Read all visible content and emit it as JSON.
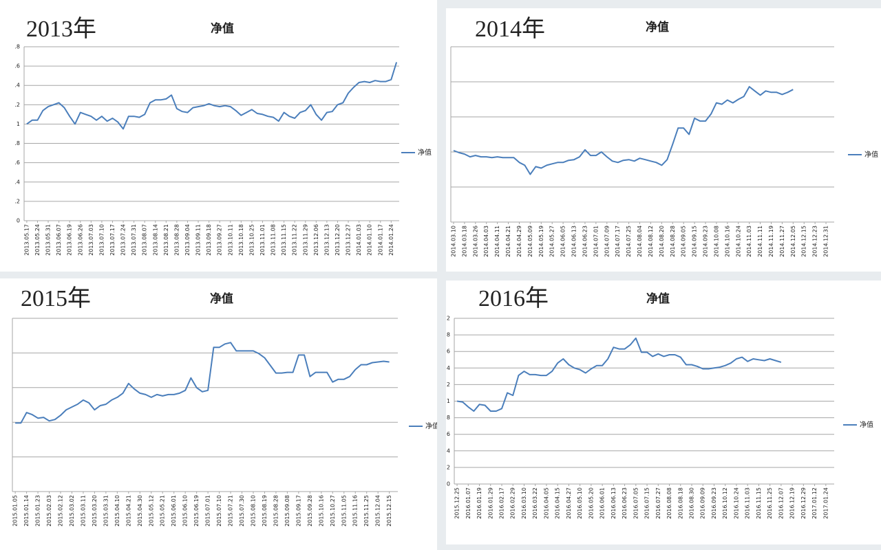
{
  "chart_data": [
    {
      "type": "line",
      "year_label": "2013年",
      "title": "净值",
      "categories": [
        "2013.05.17",
        null,
        "2013.05.24",
        null,
        "2013.05.31",
        null,
        "2013.06.07",
        null,
        "2013.06.19",
        null,
        "2013.06.26",
        null,
        "2013.07.03",
        null,
        "2013.07.10",
        null,
        "2013.07.17",
        null,
        "2013.07.24",
        null,
        "2013.07.31",
        null,
        "2013.08.07",
        null,
        "2013.08.14",
        null,
        "2013.08.21",
        null,
        "2013.08.28",
        null,
        "2013.09.04",
        null,
        "2013.09.11",
        null,
        "2013.09.18",
        null,
        "2013.09.27",
        null,
        "2013.10.11",
        null,
        "2013.10.18",
        null,
        "2013.10.25",
        null,
        "2013.11.01",
        null,
        "2013.11.08",
        null,
        "2013.11.15",
        null,
        "2013.11.22",
        null,
        "2013.11.29",
        null,
        "2013.12.06",
        null,
        "2013.12.13",
        null,
        "2013.12.20",
        null,
        "2013.12.27",
        null,
        "2014.01.03",
        null,
        "2014.01.10",
        null,
        "2014.01.17",
        null,
        "2014.01.24",
        null
      ],
      "series": [
        {
          "name": "净值",
          "color": "#4a7ebb",
          "values": [
            1.0,
            1.04,
            1.04,
            1.14,
            1.18,
            1.2,
            1.22,
            1.17,
            1.08,
            1.0,
            1.12,
            1.1,
            1.08,
            1.04,
            1.08,
            1.03,
            1.06,
            1.02,
            0.95,
            1.08,
            1.08,
            1.07,
            1.1,
            1.22,
            1.25,
            1.25,
            1.26,
            1.3,
            1.16,
            1.13,
            1.12,
            1.17,
            1.18,
            1.19,
            1.21,
            1.19,
            1.18,
            1.19,
            1.18,
            1.14,
            1.09,
            1.12,
            1.15,
            1.11,
            1.1,
            1.08,
            1.07,
            1.03,
            1.12,
            1.08,
            1.06,
            1.12,
            1.14,
            1.2,
            1.1,
            1.04,
            1.12,
            1.13,
            1.2,
            1.22,
            1.32,
            1.38,
            1.43,
            1.44,
            1.43,
            1.45,
            1.44,
            1.44,
            1.46,
            1.64
          ]
        }
      ],
      "ylim": [
        0,
        1.8
      ],
      "yticks": [
        0,
        {
          "value": 0.2,
          "label": ".2"
        },
        {
          "value": 0.4,
          "label": ".4"
        },
        {
          "value": 0.6,
          "label": ".6"
        },
        {
          "value": 0.8,
          "label": ".8"
        },
        1,
        {
          "value": 1.2,
          "label": ".2"
        },
        {
          "value": 1.4,
          "label": ".4"
        },
        {
          "value": 1.6,
          "label": ".6"
        },
        {
          "value": 1.8,
          "label": ".8"
        }
      ],
      "grid": true
    },
    {
      "type": "line",
      "year_label": "2014年",
      "title": "净值",
      "categories": [
        "2014.03.10",
        null,
        "2014.03.18",
        null,
        "2014.03.26",
        null,
        "2014.04.03",
        null,
        "2014.04.11",
        null,
        "2014.04.21",
        null,
        "2014.04.29",
        null,
        "2014.05.09",
        null,
        "2014.05.19",
        null,
        "2014.05.27",
        null,
        "2014.06.05",
        null,
        "2014.06.13",
        null,
        "2014.06.23",
        null,
        "2014.07.01",
        null,
        "2014.07.09",
        null,
        "2014.07.17",
        null,
        "2014.07.25",
        null,
        "2014.08.04",
        null,
        "2014.08.12",
        null,
        "2014.08.20",
        null,
        "2014.08.28",
        null,
        "2014.09.05",
        null,
        "2014.09.15",
        null,
        "2014.09.23",
        null,
        "2014.10.08",
        null,
        "2014.10.16",
        null,
        "2014.10.24",
        null,
        "2014.11.03",
        null,
        "2014.11.11",
        null,
        "2014.11.19",
        null,
        "2014.11.27",
        null,
        "2014.12.05",
        null,
        "2014.12.15",
        null,
        "2014.12.23",
        null,
        "2014.12.31",
        null
      ],
      "series": [
        {
          "name": "净值",
          "color": "#4a7ebb",
          "values": [
            1.02,
            0.99,
            0.97,
            0.93,
            0.95,
            0.93,
            0.93,
            0.92,
            0.93,
            0.92,
            0.92,
            0.92,
            0.85,
            0.81,
            0.68,
            0.79,
            0.77,
            0.81,
            0.83,
            0.85,
            0.85,
            0.88,
            0.89,
            0.93,
            1.03,
            0.95,
            0.95,
            1.0,
            0.93,
            0.87,
            0.85,
            0.88,
            0.89,
            0.87,
            0.91,
            0.89,
            0.87,
            0.85,
            0.81,
            0.89,
            1.11,
            1.34,
            1.34,
            1.25,
            1.48,
            1.44,
            1.44,
            1.54,
            1.7,
            1.68,
            1.74,
            1.7,
            1.75,
            1.79,
            1.93,
            1.87,
            1.81,
            1.87,
            1.85,
            1.85,
            1.82,
            1.85,
            1.89,
            null,
            null,
            null,
            null,
            null,
            null,
            null
          ]
        }
      ],
      "ylim": [
        0,
        2.5
      ],
      "ygrid": [
        0,
        0.5,
        1,
        1.5,
        2,
        2.5
      ],
      "grid": true
    },
    {
      "type": "line",
      "year_label": "2015年",
      "title": "净值",
      "categories": [
        "2015.01.05",
        null,
        "2015.01.14",
        null,
        "2015.01.23",
        null,
        "2015.02.03",
        null,
        "2015.02.12",
        null,
        "2015.03.02",
        null,
        "2015.03.11",
        null,
        "2015.03.20",
        null,
        "2015.03.31",
        null,
        "2015.04.10",
        null,
        "2015.04.21",
        null,
        "2015.04.30",
        null,
        "2015.05.12",
        null,
        "2015.05.21",
        null,
        "2015.06.01",
        null,
        "2015.06.10",
        null,
        "2015.06.19",
        null,
        "2015.07.01",
        null,
        "2015.07.10",
        null,
        "2015.07.21",
        null,
        "2015.07.30",
        null,
        "2015.08.10",
        null,
        "2015.08.19",
        null,
        "2015.08.28",
        null,
        "2015.09.08",
        null,
        "2015.09.17",
        null,
        "2015.09.28",
        null,
        "2015.10.16",
        null,
        "2015.10.27",
        null,
        "2015.11.05",
        null,
        "2015.11.16",
        null,
        "2015.11.25",
        null,
        "2015.12.04",
        null,
        "2015.12.15",
        null
      ],
      "series": [
        {
          "name": "净值",
          "color": "#4a7ebb",
          "values": [
            0.99,
            0.99,
            1.14,
            1.11,
            1.06,
            1.07,
            1.02,
            1.04,
            1.1,
            1.18,
            1.22,
            1.26,
            1.32,
            1.28,
            1.18,
            1.24,
            1.26,
            1.32,
            1.36,
            1.42,
            1.56,
            1.48,
            1.42,
            1.4,
            1.36,
            1.4,
            1.38,
            1.4,
            1.4,
            1.42,
            1.46,
            1.64,
            1.5,
            1.44,
            1.46,
            2.08,
            2.08,
            2.13,
            2.15,
            2.03,
            2.03,
            2.03,
            2.03,
            1.99,
            1.93,
            1.82,
            1.71,
            1.71,
            1.72,
            1.72,
            1.97,
            1.97,
            1.66,
            1.72,
            1.72,
            1.72,
            1.58,
            1.62,
            1.62,
            1.66,
            1.76,
            1.83,
            1.83,
            1.86,
            1.87,
            1.88,
            1.87,
            null
          ]
        }
      ],
      "ylim": [
        0,
        2.5
      ],
      "ygrid": [
        0,
        0.5,
        1,
        1.5,
        2,
        2.5
      ],
      "grid": true
    },
    {
      "type": "line",
      "year_label": "2016年",
      "title": "净值",
      "categories": [
        "2015.12.25",
        null,
        "2016.01.07",
        null,
        "2016.01.19",
        null,
        "2016.01.29",
        null,
        "2016.02.17",
        null,
        "2016.02.29",
        null,
        "2016.03.10",
        null,
        "2016.03.22",
        null,
        "2016.04.05",
        null,
        "2016.04.15",
        null,
        "2016.04.27",
        null,
        "2016.05.10",
        null,
        "2016.05.20",
        null,
        "2016.06.01",
        null,
        "2016.06.13",
        null,
        "2016.06.23",
        null,
        "2016.07.05",
        null,
        "2016.07.15",
        null,
        "2016.07.27",
        null,
        "2016.08.08",
        null,
        "2016.08.18",
        null,
        "2016.08.30",
        null,
        "2016.09.09",
        null,
        "2016.09.23",
        null,
        "2016.10.12",
        null,
        "2016.10.24",
        null,
        "2016.11.03",
        null,
        "2016.11.15",
        null,
        "2016.11.25",
        null,
        "2016.12.07",
        null,
        "2016.12.19",
        null,
        "2016.12.29",
        null,
        "2017.01.12",
        null,
        "2017.01.24",
        null
      ],
      "series": [
        {
          "name": "净值",
          "color": "#4a7ebb",
          "values": [
            1.0,
            0.99,
            0.93,
            0.88,
            0.96,
            0.95,
            0.88,
            0.88,
            0.91,
            1.1,
            1.07,
            1.31,
            1.36,
            1.32,
            1.32,
            1.31,
            1.31,
            1.36,
            1.46,
            1.51,
            1.44,
            1.4,
            1.38,
            1.34,
            1.39,
            1.43,
            1.43,
            1.51,
            1.65,
            1.63,
            1.63,
            1.68,
            1.76,
            1.59,
            1.59,
            1.54,
            1.57,
            1.54,
            1.56,
            1.56,
            1.53,
            1.44,
            1.44,
            1.42,
            1.39,
            1.39,
            1.4,
            1.41,
            1.43,
            1.46,
            1.51,
            1.53,
            1.48,
            1.51,
            1.5,
            1.49,
            1.51,
            1.49,
            1.47,
            null,
            null,
            null,
            null,
            null,
            null,
            null,
            null,
            null
          ]
        }
      ],
      "ylim": [
        0,
        2
      ],
      "yticks": [
        0,
        {
          "value": 0.2,
          "label": "2"
        },
        {
          "value": 0.4,
          "label": "4"
        },
        {
          "value": 0.6,
          "label": "6"
        },
        {
          "value": 0.8,
          "label": "8"
        },
        1,
        {
          "value": 1.2,
          "label": "2"
        },
        {
          "value": 1.4,
          "label": "4"
        },
        {
          "value": 1.6,
          "label": "6"
        },
        {
          "value": 1.8,
          "label": "8"
        },
        2
      ],
      "grid": true
    }
  ]
}
